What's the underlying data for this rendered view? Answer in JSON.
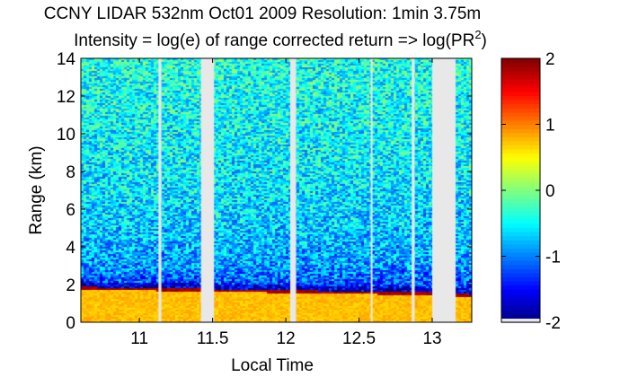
{
  "chart_data": {
    "type": "heatmap",
    "title": "CCNY LIDAR 532nm Oct01 2009 Resolution: 1min 3.75m",
    "subtitle_prefix": "Intensity = log(e) of range corrected return => log(PR",
    "subtitle_sup": "2",
    "subtitle_suffix": ")",
    "xlabel": "Local Time",
    "ylabel": "Range (km)",
    "xlim": [
      10.6,
      13.27
    ],
    "ylim": [
      0,
      14
    ],
    "x_ticks": [
      11,
      11.5,
      12,
      12.5,
      13
    ],
    "x_tick_labels": [
      "11",
      "11.5",
      "12",
      "12.5",
      "13"
    ],
    "y_ticks": [
      0,
      2,
      4,
      6,
      8,
      10,
      12,
      14
    ],
    "y_tick_labels": [
      "0",
      "2",
      "4",
      "6",
      "8",
      "10",
      "12",
      "14"
    ],
    "colorbar": {
      "range": [
        -2,
        2
      ],
      "ticks": [
        -2,
        -1,
        0,
        1,
        2
      ],
      "tick_labels": [
        "-2",
        "-1",
        "0",
        "1",
        "2"
      ],
      "colormap": "jet"
    },
    "data_gaps_hours": [
      [
        11.13,
        11.15
      ],
      [
        11.42,
        11.51
      ],
      [
        12.03,
        12.07
      ],
      [
        12.58,
        12.59
      ],
      [
        12.86,
        12.88
      ],
      [
        13.0,
        13.16
      ]
    ],
    "boundary_layer_top_km": [
      {
        "x": 10.6,
        "y": 1.85
      },
      {
        "x": 11.0,
        "y": 1.8
      },
      {
        "x": 11.4,
        "y": 1.75
      },
      {
        "x": 11.8,
        "y": 1.7
      },
      {
        "x": 12.2,
        "y": 1.65
      },
      {
        "x": 12.6,
        "y": 1.6
      },
      {
        "x": 13.0,
        "y": 1.55
      },
      {
        "x": 13.27,
        "y": 1.45
      }
    ],
    "intensity_profile": [
      {
        "range_km": 0.2,
        "value": 0.7
      },
      {
        "range_km": 1.0,
        "value": 0.75
      },
      {
        "range_km": 1.6,
        "value": 1.9
      },
      {
        "range_km": 2.0,
        "value": -1.2
      },
      {
        "range_km": 3.0,
        "value": -0.9
      },
      {
        "range_km": 5.0,
        "value": -0.7
      },
      {
        "range_km": 8.0,
        "value": -0.55
      },
      {
        "range_km": 12.0,
        "value": -0.45
      },
      {
        "range_km": 14.0,
        "value": -0.4
      }
    ]
  }
}
